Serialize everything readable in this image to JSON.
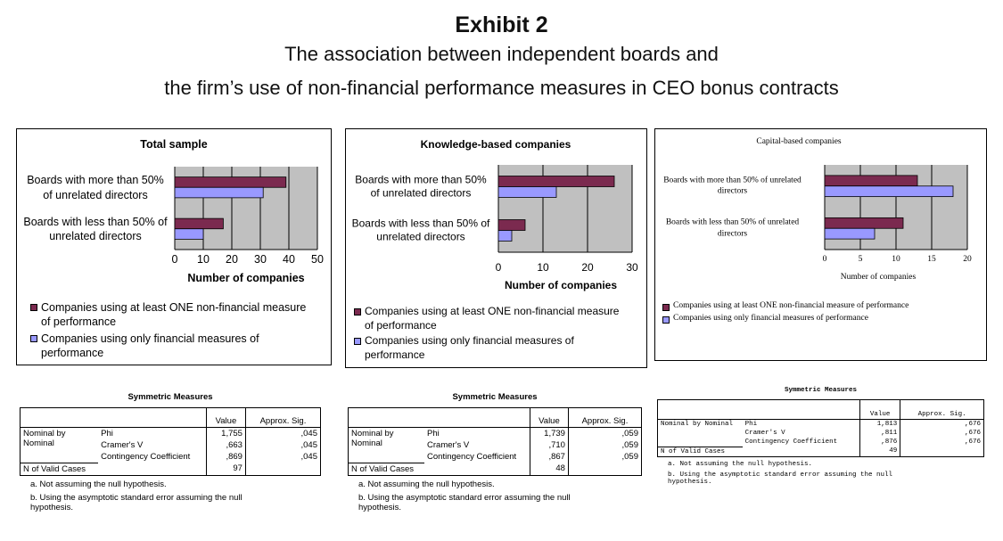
{
  "header": {
    "title": "Exhibit 2",
    "subtitle_lines": [
      "The association between independent boards and",
      "the firm’s use of non-financial performance measures in CEO bonus contracts"
    ]
  },
  "chart_data": [
    {
      "type": "bar",
      "orientation": "horizontal",
      "title": "Total sample",
      "x_label": "Number of companies",
      "categories": [
        "Boards with more than 50% of unrelated directors",
        "Boards with less than 50% of unrelated directors"
      ],
      "series": [
        {
          "name": "Companies using at least ONE non-financial measure of performance",
          "color": "#7b2a4f",
          "values": [
            39,
            17
          ]
        },
        {
          "name": "Companies using only financial measures of performance",
          "color": "#9999ff",
          "values": [
            31,
            10
          ]
        }
      ],
      "xlim": [
        0,
        50
      ],
      "xticks": [
        0,
        10,
        20,
        30,
        40,
        50
      ],
      "grid": true
    },
    {
      "type": "bar",
      "orientation": "horizontal",
      "title": "Knowledge-based companies",
      "x_label": "Number of companies",
      "categories": [
        "Boards with more than 50% of unrelated directors",
        "Boards with less than 50% of unrelated directors"
      ],
      "series": [
        {
          "name": "Companies using at least ONE non-financial measure of performance",
          "color": "#7b2a4f",
          "values": [
            26,
            6
          ]
        },
        {
          "name": "Companies using only financial measures of performance",
          "color": "#9999ff",
          "values": [
            13,
            3
          ]
        }
      ],
      "xlim": [
        0,
        30
      ],
      "xticks": [
        0,
        10,
        20,
        30
      ],
      "grid": true
    },
    {
      "type": "bar",
      "orientation": "horizontal",
      "title": "Capital-based companies",
      "x_label": "Number of companies",
      "categories": [
        "Boards with more than 50% of unrelated directors",
        "Boards with less than 50% of unrelated directors"
      ],
      "series": [
        {
          "name": "Companies using at least ONE non-financial measure of performance",
          "color": "#7b2a4f",
          "values": [
            13,
            11
          ]
        },
        {
          "name": "Companies using only financial measures of performance",
          "color": "#9999ff",
          "values": [
            18,
            7
          ]
        }
      ],
      "xlim": [
        0,
        20
      ],
      "xticks": [
        0,
        5,
        10,
        15,
        20
      ],
      "grid": true
    }
  ],
  "tables": [
    {
      "title": "Symmetric Measures",
      "columns": [
        "Value",
        "Approx. Sig."
      ],
      "group": "Nominal by Nominal",
      "rows": [
        [
          "Phi",
          "1,755",
          ",045"
        ],
        [
          "Cramer's V",
          ",663",
          ",045"
        ],
        [
          "Contingency Coefficient",
          ",869",
          ",045"
        ]
      ],
      "n_valid": [
        "N of Valid Cases",
        "97"
      ],
      "footnotes": [
        "a. Not assuming the null hypothesis.",
        "b. Using the asymptotic standard error assuming the null hypothesis."
      ]
    },
    {
      "title": "Symmetric Measures",
      "columns": [
        "Value",
        "Approx. Sig."
      ],
      "group": "Nominal by Nominal",
      "rows": [
        [
          "Phi",
          "1,739",
          ",059"
        ],
        [
          "Cramer's V",
          ",710",
          ",059"
        ],
        [
          "Contingency Coefficient",
          ",867",
          ",059"
        ]
      ],
      "n_valid": [
        "N of Valid Cases",
        "48"
      ],
      "footnotes": [
        "a. Not assuming the null hypothesis.",
        "b. Using the asymptotic standard error assuming the null hypothesis."
      ]
    },
    {
      "title": "Symmetric Measures",
      "columns": [
        "Value",
        "Approx. Sig."
      ],
      "group": "Nominal by Nominal",
      "rows": [
        [
          "Phi",
          "1,813",
          ",676"
        ],
        [
          "Cramer's V",
          ",811",
          ",676"
        ],
        [
          "Contingency Coefficient",
          ",876",
          ",676"
        ]
      ],
      "n_valid": [
        "N of Valid Cases",
        "49"
      ],
      "footnotes": [
        "a. Not assuming the null hypothesis.",
        "b. Using the asymptotic standard error assuming the null hypothesis."
      ]
    }
  ]
}
